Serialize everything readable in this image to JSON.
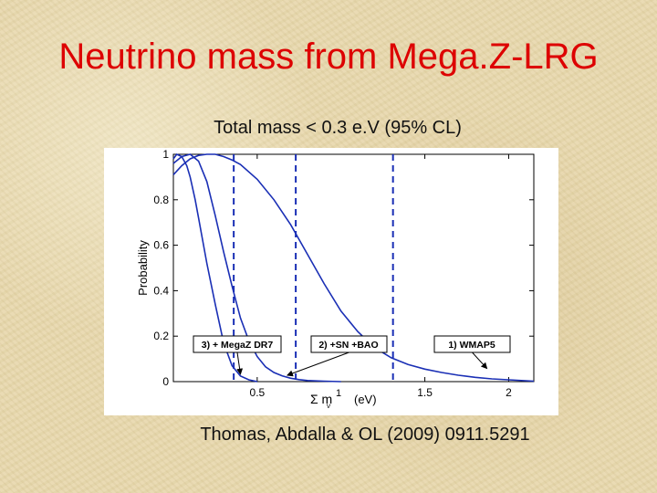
{
  "slide": {
    "title": "Neutrino mass from Mega.Z-LRG",
    "subtitle": "Total mass < 0.3 e.V  (95% CL)",
    "reference": "Thomas, Abdalla & OL  (2009)  0911.5291"
  },
  "chart_data": {
    "type": "line",
    "xlabel": "Σ m",
    "xlabel_sub": "ν",
    "xlabel_sup": "1",
    "xlabel_unit": "(eV)",
    "ylabel": "Probability",
    "xlim": [
      0,
      2.15
    ],
    "ylim": [
      0,
      1.0
    ],
    "xticks": [
      0.5,
      1.5,
      2
    ],
    "xtick_labels": [
      "0.5",
      "1.5",
      "2"
    ],
    "yticks": [
      0,
      0.2,
      0.4,
      0.6,
      0.8,
      1
    ],
    "ytick_labels": [
      "0",
      "0.2",
      "0.4",
      "0.6",
      "0.8",
      "1"
    ],
    "grid": false,
    "line_color": "#1a2fb5",
    "series": [
      {
        "name": "1)  WMAP5",
        "x": [
          0,
          0.05,
          0.1,
          0.15,
          0.2,
          0.25,
          0.3,
          0.35,
          0.4,
          0.5,
          0.6,
          0.7,
          0.8,
          0.9,
          1.0,
          1.1,
          1.2,
          1.3,
          1.4,
          1.5,
          1.6,
          1.7,
          1.8,
          1.9,
          2.0,
          2.1,
          2.15
        ],
        "y": [
          0.91,
          0.95,
          0.98,
          0.995,
          1.0,
          1.0,
          0.99,
          0.975,
          0.955,
          0.89,
          0.8,
          0.69,
          0.56,
          0.43,
          0.31,
          0.22,
          0.15,
          0.105,
          0.075,
          0.055,
          0.04,
          0.028,
          0.019,
          0.012,
          0.008,
          0.004,
          0.002
        ]
      },
      {
        "name": "2) +SN +BAO",
        "x": [
          0,
          0.05,
          0.1,
          0.15,
          0.2,
          0.25,
          0.3,
          0.35,
          0.4,
          0.45,
          0.5,
          0.55,
          0.6,
          0.65,
          0.7,
          0.75,
          0.8,
          0.9,
          1.0
        ],
        "y": [
          0.96,
          0.99,
          1.0,
          0.97,
          0.88,
          0.73,
          0.57,
          0.42,
          0.28,
          0.18,
          0.11,
          0.065,
          0.04,
          0.025,
          0.015,
          0.009,
          0.005,
          0.002,
          0.0
        ]
      },
      {
        "name": "3) + MegaZ DR7",
        "x": [
          0,
          0.02,
          0.05,
          0.08,
          0.1,
          0.13,
          0.15,
          0.2,
          0.25,
          0.3,
          0.35,
          0.4,
          0.45,
          0.5
        ],
        "y": [
          0.98,
          1.0,
          0.99,
          0.95,
          0.9,
          0.8,
          0.72,
          0.52,
          0.34,
          0.17,
          0.07,
          0.025,
          0.008,
          0.0
        ]
      }
    ],
    "vlines": [
      0.36,
      0.73,
      1.31
    ],
    "vline_style": "dashed",
    "legend_position": "bottom",
    "annotations": [
      {
        "text": "3) + MegaZ DR7",
        "points_to_x": 0.4,
        "points_to_y": 0.025
      },
      {
        "text": "2) +SN +BAO",
        "points_to_x": 0.68,
        "points_to_y": 0.02
      },
      {
        "text": "1)  WMAP5",
        "points_to_x": 1.87,
        "points_to_y": 0.05
      }
    ]
  }
}
